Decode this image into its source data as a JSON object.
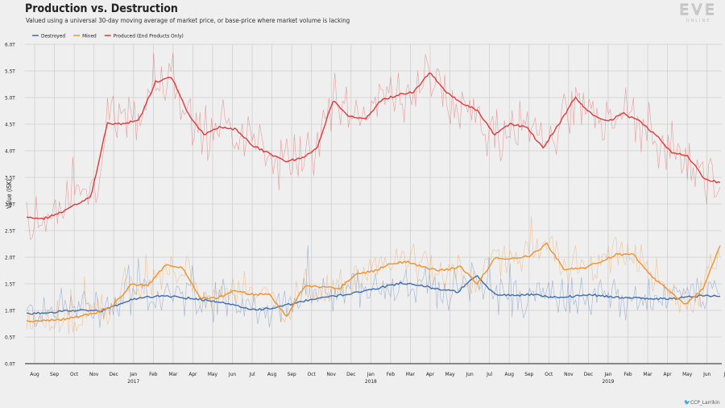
{
  "header": {
    "title": "Production vs. Destruction",
    "subtitle": "Valued using a universal 30-day moving average of market price, or base-price where market volume is lacking"
  },
  "logo": {
    "text": "EVE",
    "subtext": "ONLINE"
  },
  "credit": "🐦CCP_Larrikin",
  "chart_data": {
    "type": "line",
    "title": "Production vs. Destruction",
    "subtitle": "Valued using a universal 30-day moving average of market price, or base-price where market volume is lacking",
    "xlabel": "",
    "ylabel": "Value (ISK)",
    "ylim": [
      0,
      6
    ],
    "yticks": [
      "0.0T",
      "0.5T",
      "1.0T",
      "1.5T",
      "2.0T",
      "2.5T",
      "3.0T",
      "3.5T",
      "4.0T",
      "4.5T",
      "5.0T",
      "5.5T",
      "6.0T"
    ],
    "grid": true,
    "legend": "top-left",
    "x_ticks": [
      {
        "label": "Aug",
        "year": ""
      },
      {
        "label": "Sep",
        "year": ""
      },
      {
        "label": "Oct",
        "year": ""
      },
      {
        "label": "Nov",
        "year": ""
      },
      {
        "label": "Dec",
        "year": ""
      },
      {
        "label": "Jan",
        "year": "2017"
      },
      {
        "label": "Feb",
        "year": ""
      },
      {
        "label": "Mar",
        "year": ""
      },
      {
        "label": "Apr",
        "year": ""
      },
      {
        "label": "May",
        "year": ""
      },
      {
        "label": "Jun",
        "year": ""
      },
      {
        "label": "Jul",
        "year": ""
      },
      {
        "label": "Aug",
        "year": ""
      },
      {
        "label": "Sep",
        "year": ""
      },
      {
        "label": "Oct",
        "year": ""
      },
      {
        "label": "Nov",
        "year": ""
      },
      {
        "label": "Dec",
        "year": ""
      },
      {
        "label": "Jan",
        "year": "2018"
      },
      {
        "label": "Feb",
        "year": ""
      },
      {
        "label": "Mar",
        "year": ""
      },
      {
        "label": "Apr",
        "year": ""
      },
      {
        "label": "May",
        "year": ""
      },
      {
        "label": "Jun",
        "year": ""
      },
      {
        "label": "Jul",
        "year": ""
      },
      {
        "label": "Aug",
        "year": ""
      },
      {
        "label": "Sep",
        "year": ""
      },
      {
        "label": "Oct",
        "year": ""
      },
      {
        "label": "Nov",
        "year": ""
      },
      {
        "label": "Dec",
        "year": ""
      },
      {
        "label": "Jan",
        "year": "2019"
      },
      {
        "label": "Feb",
        "year": ""
      },
      {
        "label": "Mar",
        "year": ""
      },
      {
        "label": "Apr",
        "year": ""
      },
      {
        "label": "May",
        "year": ""
      },
      {
        "label": "Jun",
        "year": ""
      },
      {
        "label": "Jul",
        "year": ""
      }
    ],
    "months": [
      "2016-08",
      "2016-09",
      "2016-10",
      "2016-11",
      "2016-12",
      "2017-01",
      "2017-02",
      "2017-03",
      "2017-04",
      "2017-05",
      "2017-06",
      "2017-07",
      "2017-08",
      "2017-09",
      "2017-10",
      "2017-11",
      "2017-12",
      "2018-01",
      "2018-02",
      "2018-03",
      "2018-04",
      "2018-05",
      "2018-06",
      "2018-07",
      "2018-08",
      "2018-09",
      "2018-10",
      "2018-11",
      "2018-12",
      "2019-01",
      "2019-02",
      "2019-03",
      "2019-04",
      "2019-05",
      "2019-06",
      "2019-07"
    ],
    "series": [
      {
        "name": "Destroyed",
        "color": "#3d6cb0",
        "noise": 0.32,
        "smooth": [
          0.93,
          0.96,
          0.99,
          1.01,
          0.99,
          1.13,
          1.24,
          1.27,
          1.25,
          1.22,
          1.18,
          1.1,
          1.02,
          1.03,
          1.11,
          1.19,
          1.25,
          1.3,
          1.37,
          1.44,
          1.52,
          1.47,
          1.4,
          1.35,
          1.65,
          1.3,
          1.28,
          1.3,
          1.25,
          1.26,
          1.3,
          1.26,
          1.24,
          1.22,
          1.22,
          1.24,
          1.28,
          1.27
        ]
      },
      {
        "name": "Mined",
        "color": "#f0912c",
        "noise": 0.28,
        "smooth": [
          0.8,
          0.81,
          0.83,
          0.88,
          0.95,
          1.1,
          1.48,
          1.47,
          1.85,
          1.8,
          1.23,
          1.23,
          1.38,
          1.3,
          1.3,
          0.88,
          1.45,
          1.45,
          1.4,
          1.68,
          1.74,
          1.88,
          1.92,
          1.8,
          1.75,
          1.82,
          1.5,
          1.98,
          1.98,
          2.02,
          2.25,
          1.78,
          1.78,
          1.9,
          2.05,
          2.05,
          1.65,
          1.38,
          1.12,
          1.4,
          2.22
        ]
      },
      {
        "name": "Produced (End Products Only)",
        "color": "#dc3a3a",
        "noise": 0.45,
        "smooth": [
          2.77,
          2.72,
          2.82,
          2.98,
          3.15,
          4.52,
          4.5,
          4.6,
          5.3,
          5.38,
          4.7,
          4.3,
          4.45,
          4.4,
          4.1,
          3.95,
          3.8,
          3.85,
          4.05,
          4.95,
          4.65,
          4.6,
          4.95,
          5.05,
          5.1,
          5.48,
          5.1,
          4.9,
          4.75,
          4.3,
          4.5,
          4.45,
          4.05,
          4.5,
          5.0,
          4.7,
          4.55,
          4.7,
          4.55,
          4.3,
          3.97,
          3.9,
          3.48,
          3.4
        ]
      }
    ]
  }
}
